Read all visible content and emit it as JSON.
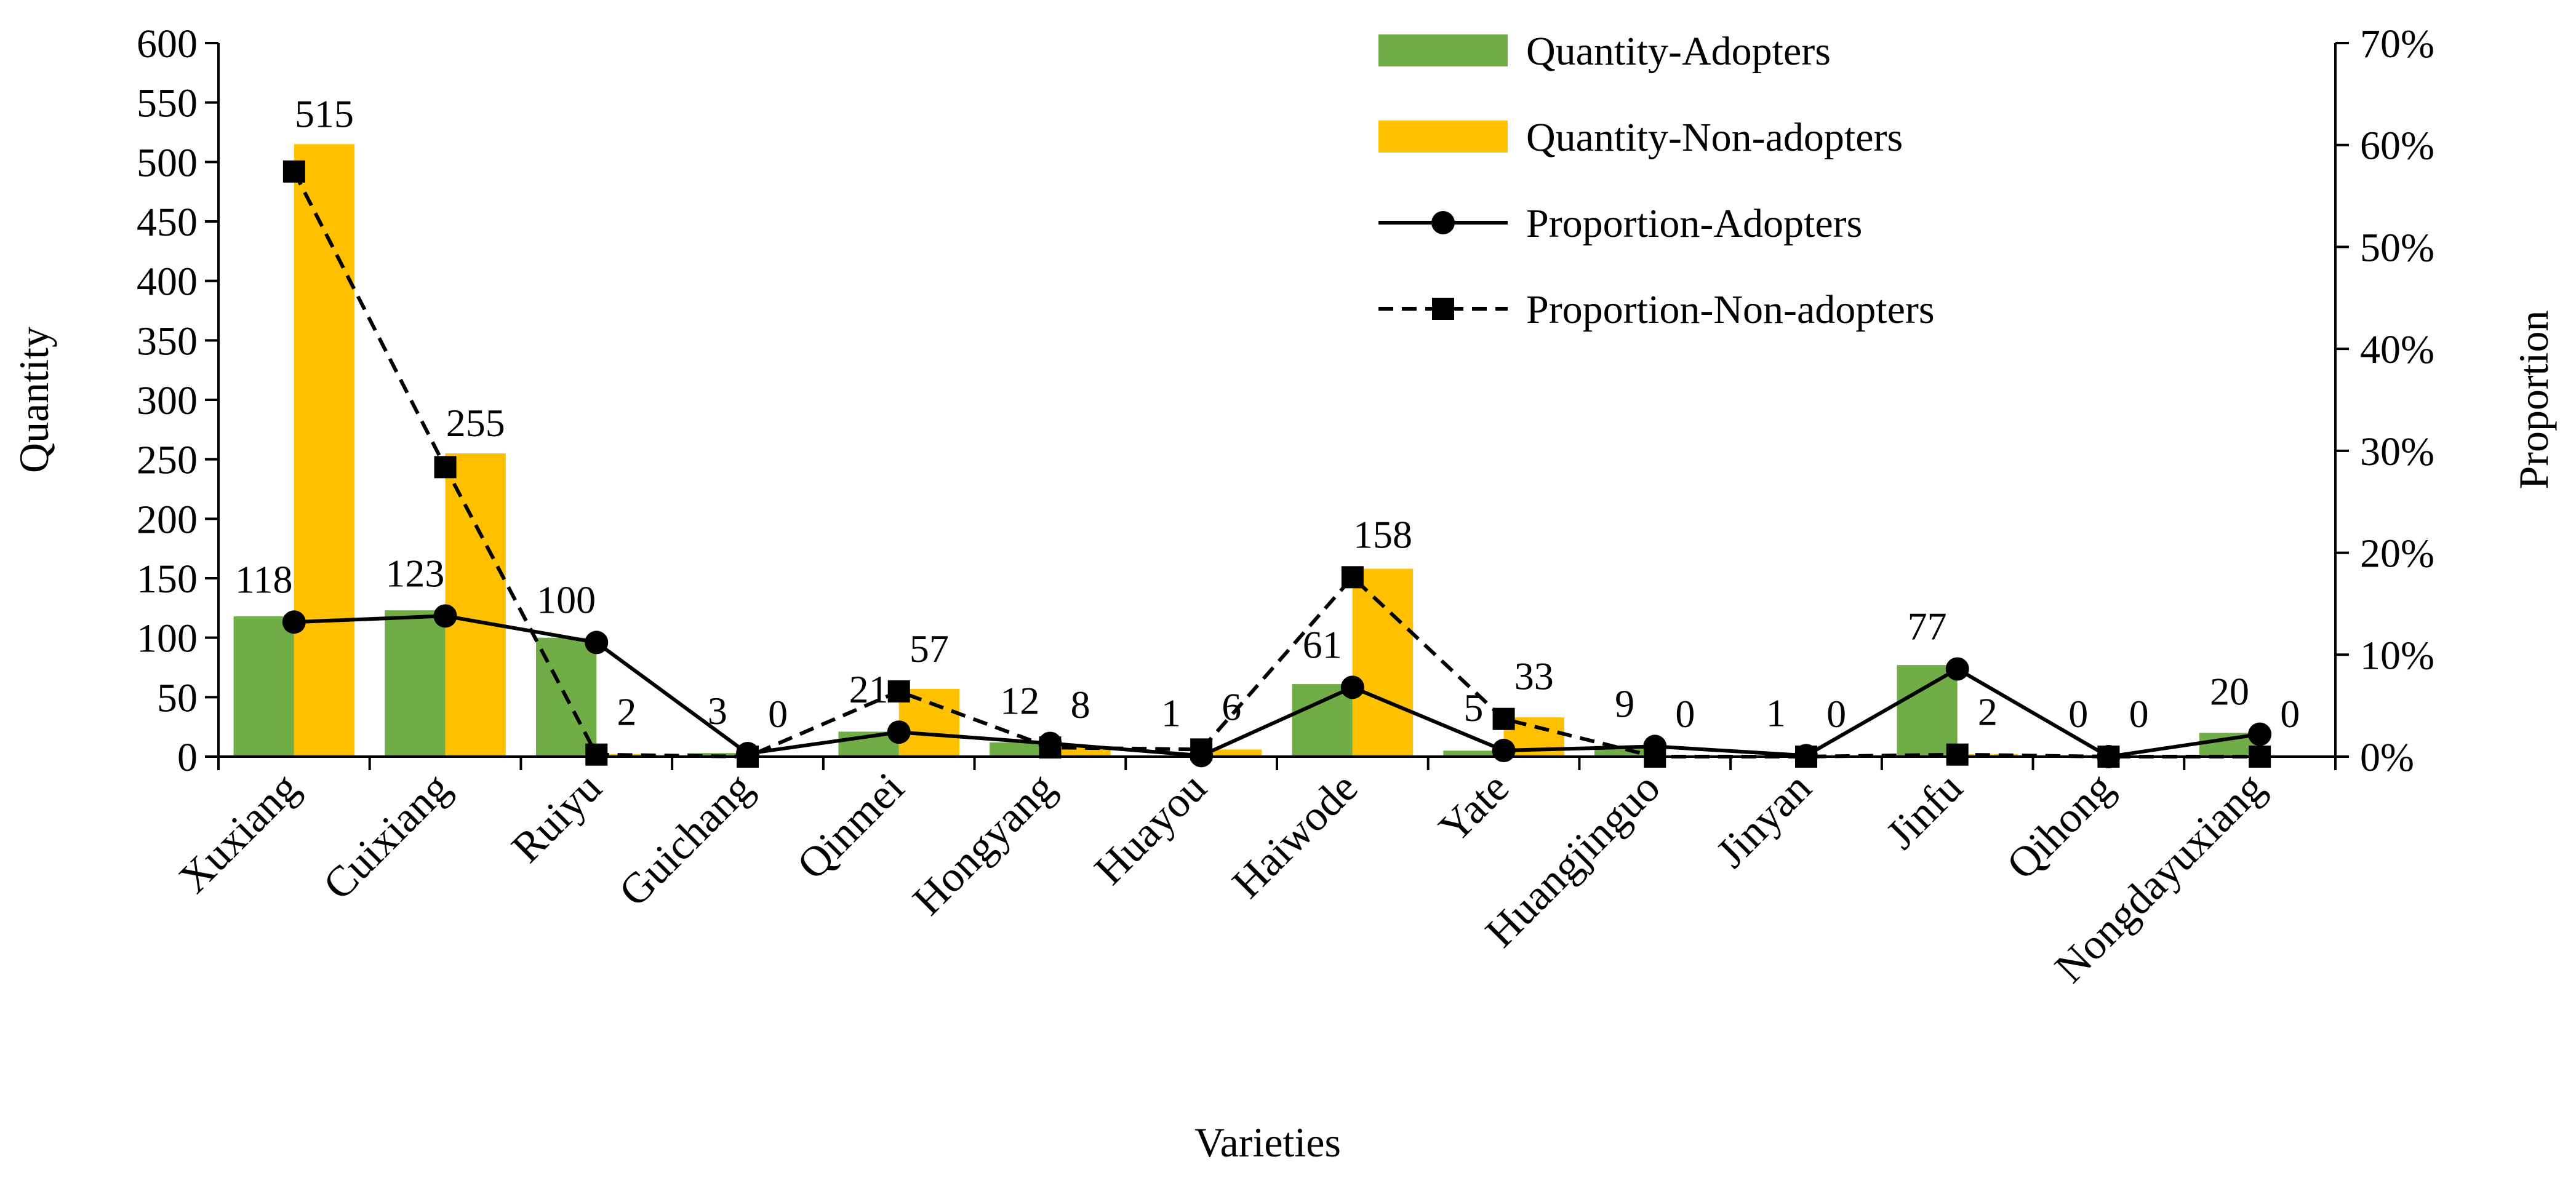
{
  "chart_data": {
    "type": "bar",
    "title": "",
    "xlabel": "Varieties",
    "ylabel": "Quantity",
    "y2label": "Proportion",
    "ylim": [
      0,
      600
    ],
    "y2lim": [
      0,
      0.7
    ],
    "yticks": [
      "0",
      "50",
      "100",
      "150",
      "200",
      "250",
      "300",
      "350",
      "400",
      "450",
      "500",
      "550",
      "600"
    ],
    "y2ticks": [
      "0%",
      "10%",
      "20%",
      "30%",
      "40%",
      "50%",
      "60%",
      "70%"
    ],
    "categories": [
      "Xuxiang",
      "Cuixiang",
      "Ruiyu",
      "Guichang",
      "Qinmei",
      "Hongyang",
      "Huayou",
      "Haiwode",
      "Yate",
      "Huangjinguo",
      "Jinyan",
      "Jinfu",
      "Qihong",
      "Nongdayuxiang"
    ],
    "legend_position": "top-right",
    "series": [
      {
        "name": "Quantity-Adopters",
        "kind": "bar",
        "axis": "left",
        "color": "#70AD47",
        "values": [
          118,
          123,
          100,
          3,
          21,
          12,
          1,
          61,
          5,
          9,
          1,
          77,
          0,
          20
        ]
      },
      {
        "name": "Quantity-Non-adopters",
        "kind": "bar",
        "axis": "left",
        "color": "#FFC000",
        "values": [
          515,
          255,
          2,
          0,
          57,
          8,
          6,
          158,
          33,
          0,
          0,
          2,
          0,
          0
        ]
      },
      {
        "name": "Proportion-Adopters",
        "kind": "line",
        "axis": "right",
        "color": "#000000",
        "marker": "circle",
        "dash": "solid",
        "values": [
          0.132,
          0.138,
          0.112,
          0.003,
          0.024,
          0.013,
          0.001,
          0.068,
          0.006,
          0.01,
          0.001,
          0.086,
          0.0,
          0.022
        ]
      },
      {
        "name": "Proportion-Non-adopters",
        "kind": "line",
        "axis": "right",
        "color": "#000000",
        "marker": "square",
        "dash": "dashed",
        "values": [
          0.574,
          0.284,
          0.002,
          0.0,
          0.064,
          0.009,
          0.007,
          0.176,
          0.037,
          0.0,
          0.0,
          0.002,
          0.0,
          0.0
        ]
      }
    ]
  }
}
